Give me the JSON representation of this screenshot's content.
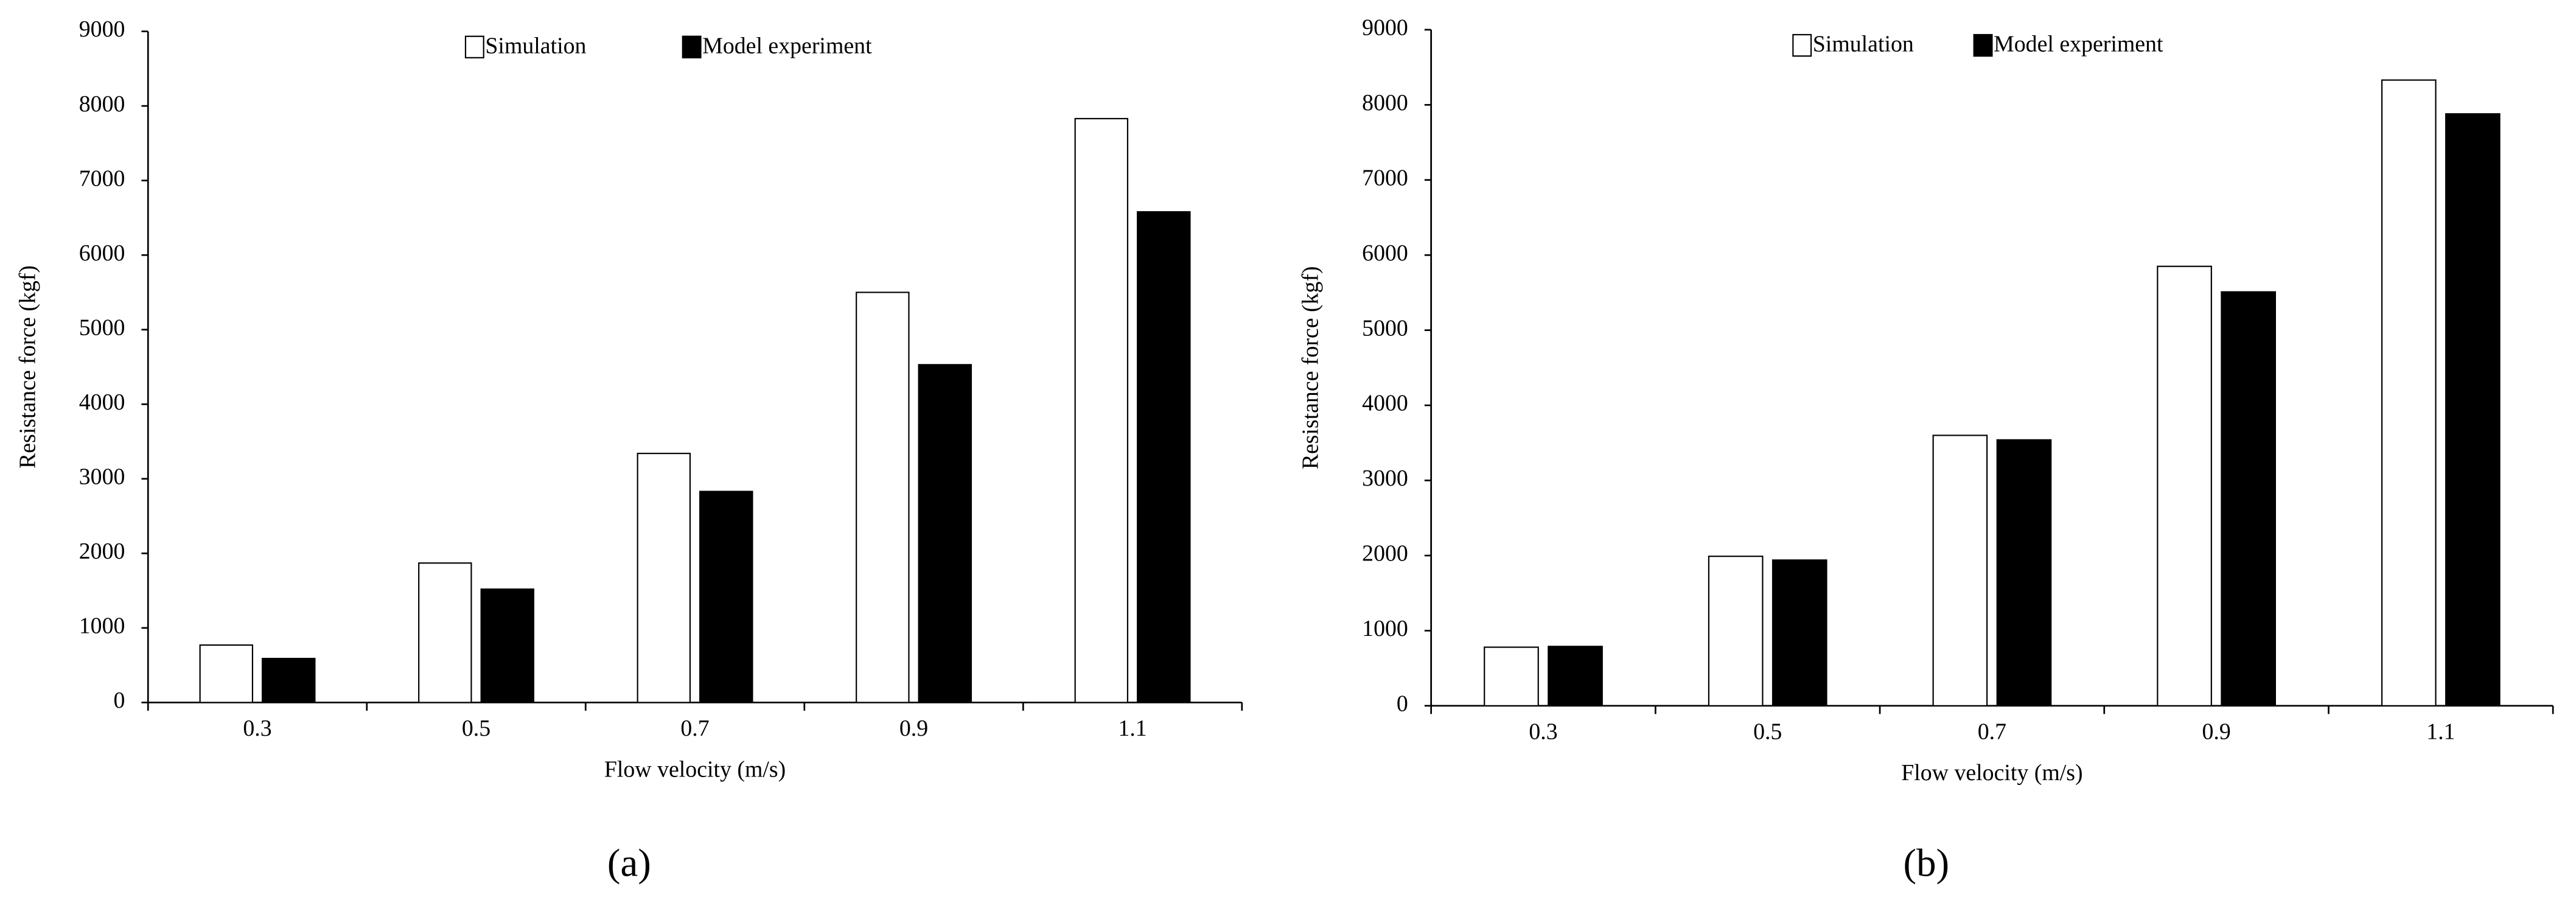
{
  "chart_data": [
    {
      "type": "bar",
      "panel": "(a)",
      "x_label": "Flow velocity (m/s)",
      "y_label": "Resistance force (kgf)",
      "categories": [
        "0.3",
        "0.5",
        "0.7",
        "0.9",
        "1.1"
      ],
      "series": [
        {
          "name": "Simulation",
          "color": "#ffffff",
          "values": [
            770,
            1870,
            3340,
            5500,
            7830
          ]
        },
        {
          "name": "Model experiment",
          "color": "#000000",
          "values": [
            590,
            1520,
            2830,
            4530,
            6580
          ]
        }
      ],
      "ylim": [
        0,
        9000
      ],
      "yticks": [
        0,
        1000,
        2000,
        3000,
        4000,
        5000,
        6000,
        7000,
        8000,
        9000
      ]
    },
    {
      "type": "bar",
      "panel": "(b)",
      "x_label": "Flow velocity (m/s)",
      "y_label": "Resistance force (kgf)",
      "categories": [
        "0.3",
        "0.5",
        "0.7",
        "0.9",
        "1.1"
      ],
      "series": [
        {
          "name": "Simulation",
          "color": "#ffffff",
          "values": [
            780,
            1990,
            3600,
            5850,
            8330
          ]
        },
        {
          "name": "Model experiment",
          "color": "#000000",
          "values": [
            790,
            1940,
            3540,
            5510,
            7880
          ]
        }
      ],
      "ylim": [
        0,
        9000
      ],
      "yticks": [
        0,
        1000,
        2000,
        3000,
        4000,
        5000,
        6000,
        7000,
        8000,
        9000
      ]
    }
  ]
}
